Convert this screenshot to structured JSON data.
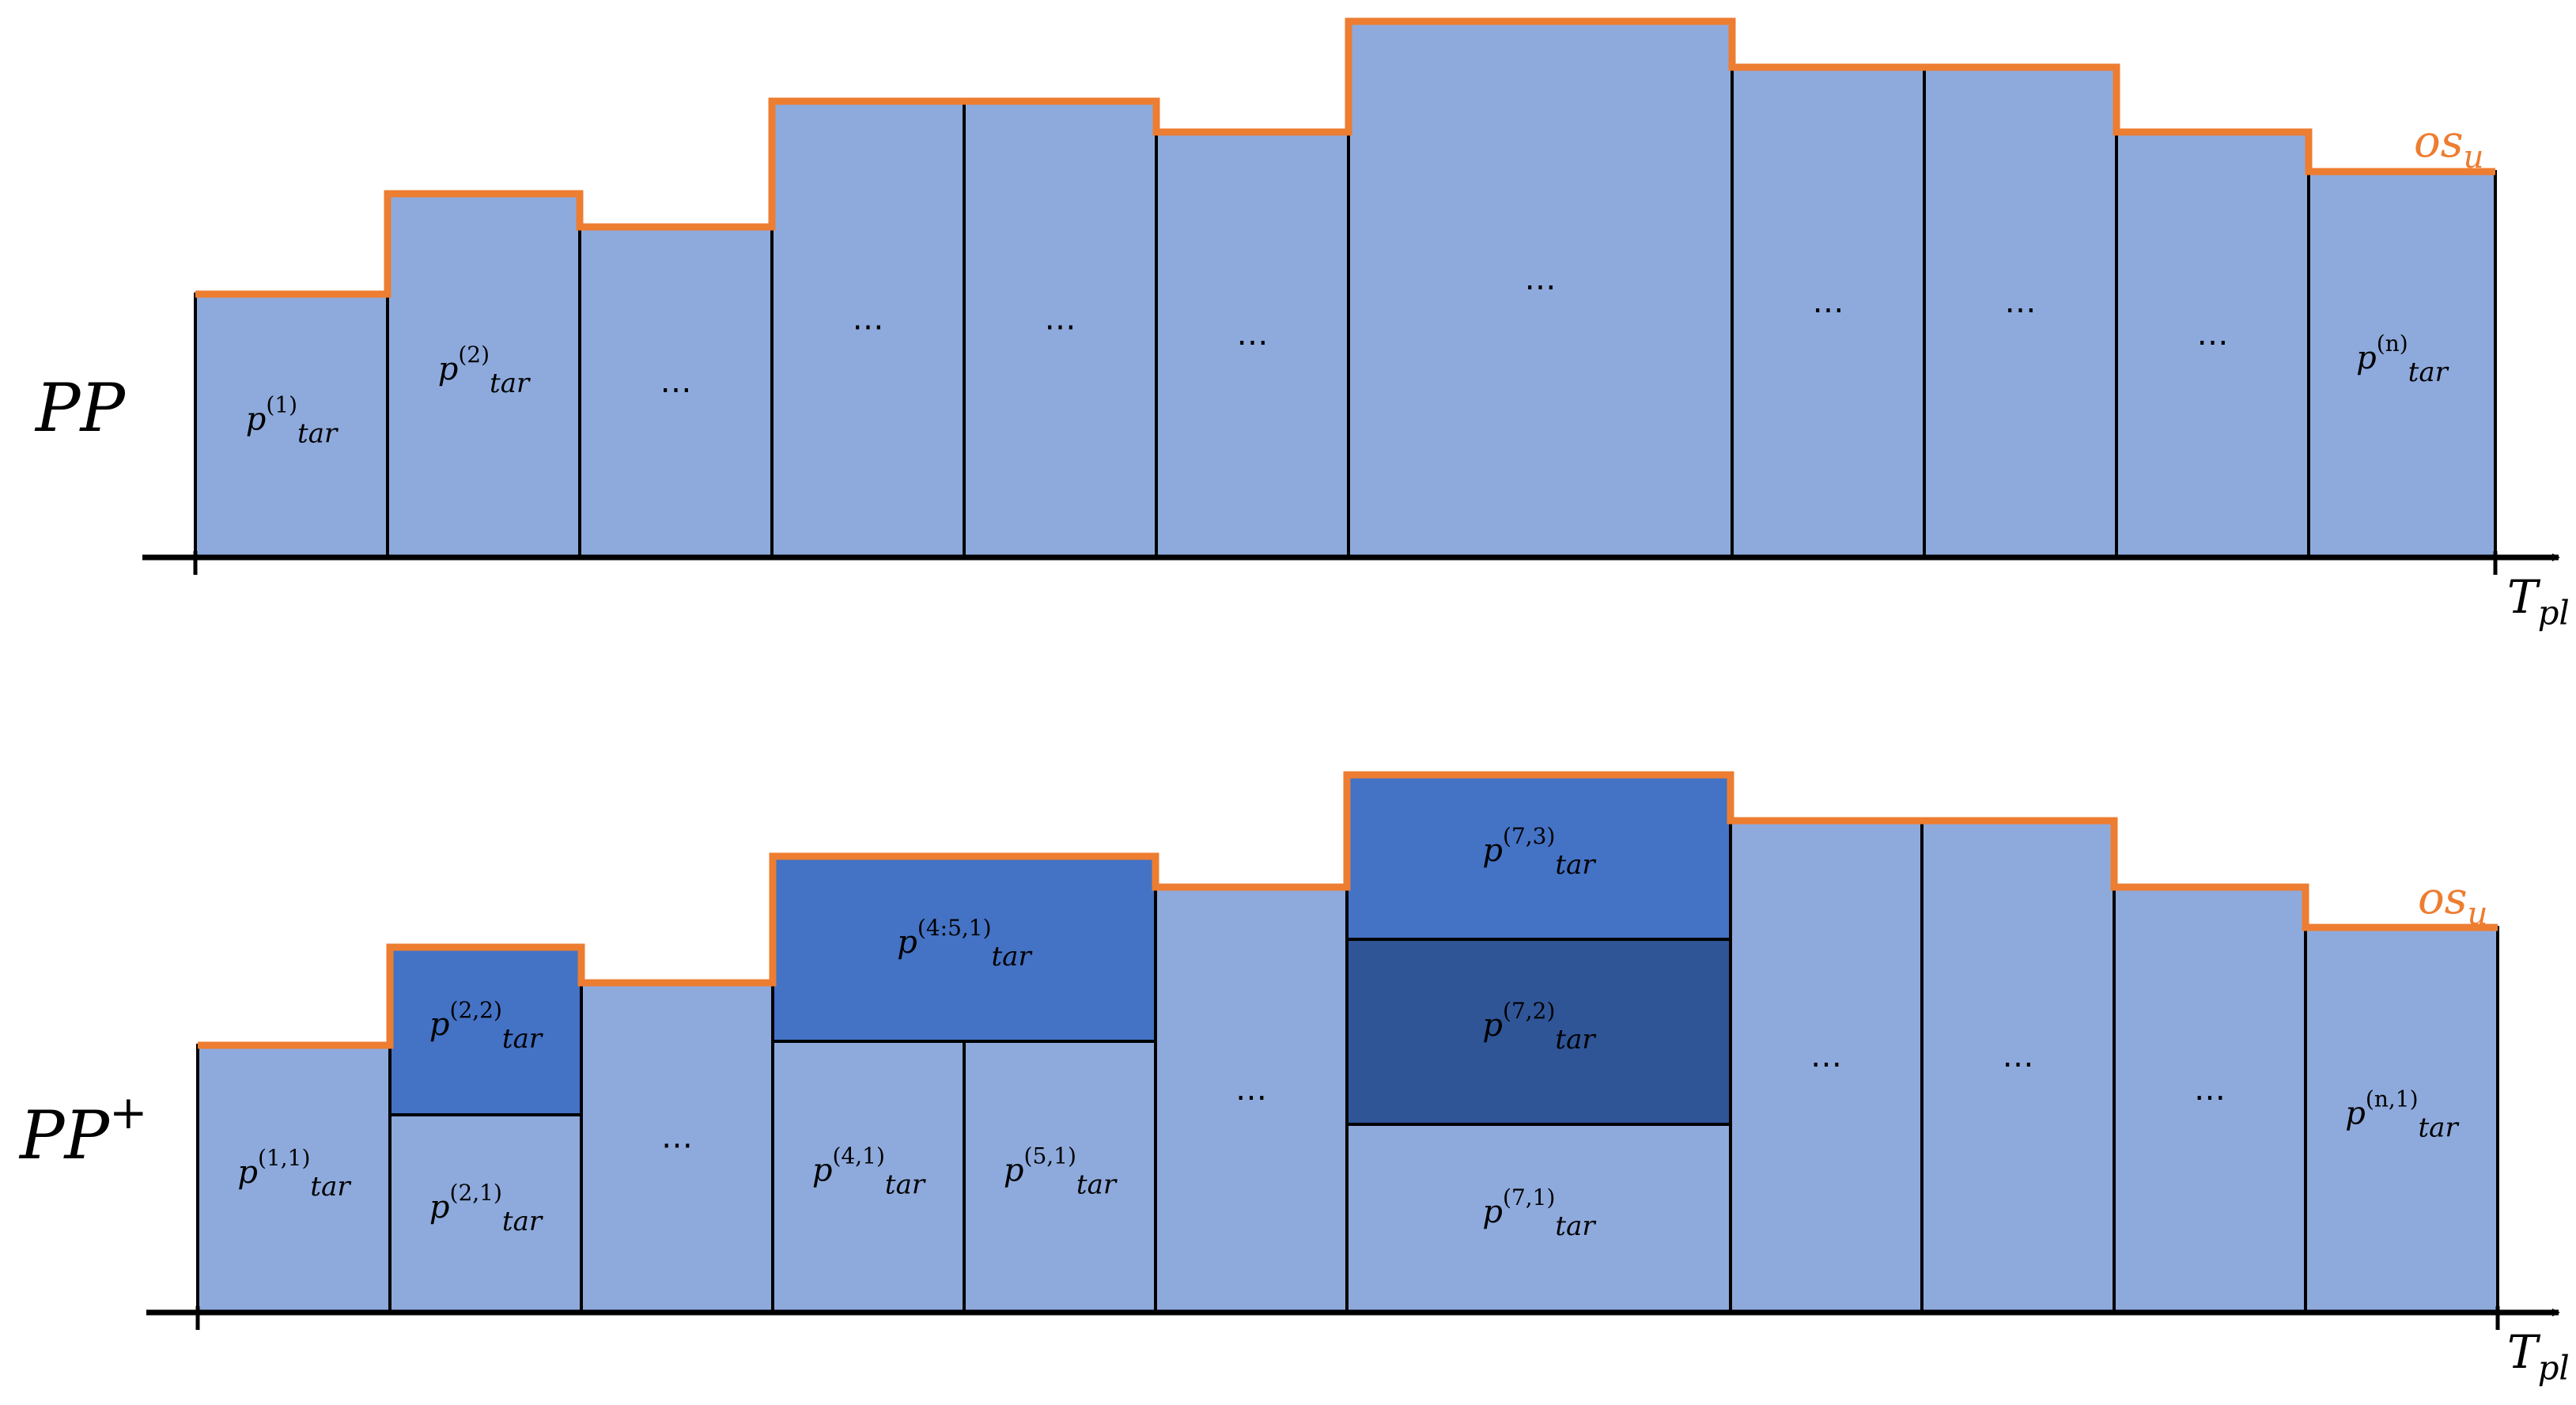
{
  "colors": {
    "light_block": "#8eaadc",
    "mid_block": "#4472c4",
    "dark_block": "#2f5597",
    "outline": "#000000",
    "profile_line": "#ed7d31",
    "background": "#ffffff"
  },
  "top_panel": {
    "label": "PP",
    "axis_label": {
      "main": "T",
      "sub": "pl"
    },
    "profile_label": {
      "main": "os",
      "sub": "u"
    },
    "blocks": [
      {
        "label": {
          "main": "p",
          "sub": "tar",
          "sup": "(1)"
        }
      },
      {
        "label": {
          "main": "p",
          "sub": "tar",
          "sup": "(2)"
        }
      },
      {
        "label": {
          "text": "…"
        }
      },
      {
        "label": {
          "text": "…"
        }
      },
      {
        "label": {
          "text": "…"
        }
      },
      {
        "label": {
          "text": "…"
        }
      },
      {
        "label": {
          "text": "…"
        }
      },
      {
        "label": {
          "text": "…"
        }
      },
      {
        "label": {
          "text": "…"
        }
      },
      {
        "label": {
          "text": "…"
        }
      },
      {
        "label": {
          "main": "p",
          "sub": "tar",
          "sup": "(n)"
        }
      }
    ]
  },
  "bottom_panel": {
    "label": "PP",
    "label_sup": "+",
    "axis_label": {
      "main": "T",
      "sub": "pl"
    },
    "profile_label": {
      "main": "os",
      "sub": "u"
    },
    "blocks": [
      {
        "label": {
          "main": "p",
          "sub": "tar",
          "sup": "(1,1)"
        }
      },
      {
        "label": {
          "main": "p",
          "sub": "tar",
          "sup": "(2,1)"
        }
      },
      {
        "label": {
          "main": "p",
          "sub": "tar",
          "sup": "(2,2)"
        }
      },
      {
        "label": {
          "text": "…"
        }
      },
      {
        "label": {
          "main": "p",
          "sub": "tar",
          "sup": "(4,1)"
        }
      },
      {
        "label": {
          "main": "p",
          "sub": "tar",
          "sup": "(5,1)"
        }
      },
      {
        "label": {
          "main": "p",
          "sub": "tar",
          "sup": "(4:5,1)"
        }
      },
      {
        "label": {
          "text": "…"
        }
      },
      {
        "label": {
          "main": "p",
          "sub": "tar",
          "sup": "(7,1)"
        }
      },
      {
        "label": {
          "main": "p",
          "sub": "tar",
          "sup": "(7,2)"
        }
      },
      {
        "label": {
          "main": "p",
          "sub": "tar",
          "sup": "(7,3)"
        }
      },
      {
        "label": {
          "text": "…"
        }
      },
      {
        "label": {
          "text": "…"
        }
      },
      {
        "label": {
          "text": "…"
        }
      },
      {
        "label": {
          "main": "p",
          "sub": "tar",
          "sup": "(n,1)"
        }
      }
    ]
  }
}
